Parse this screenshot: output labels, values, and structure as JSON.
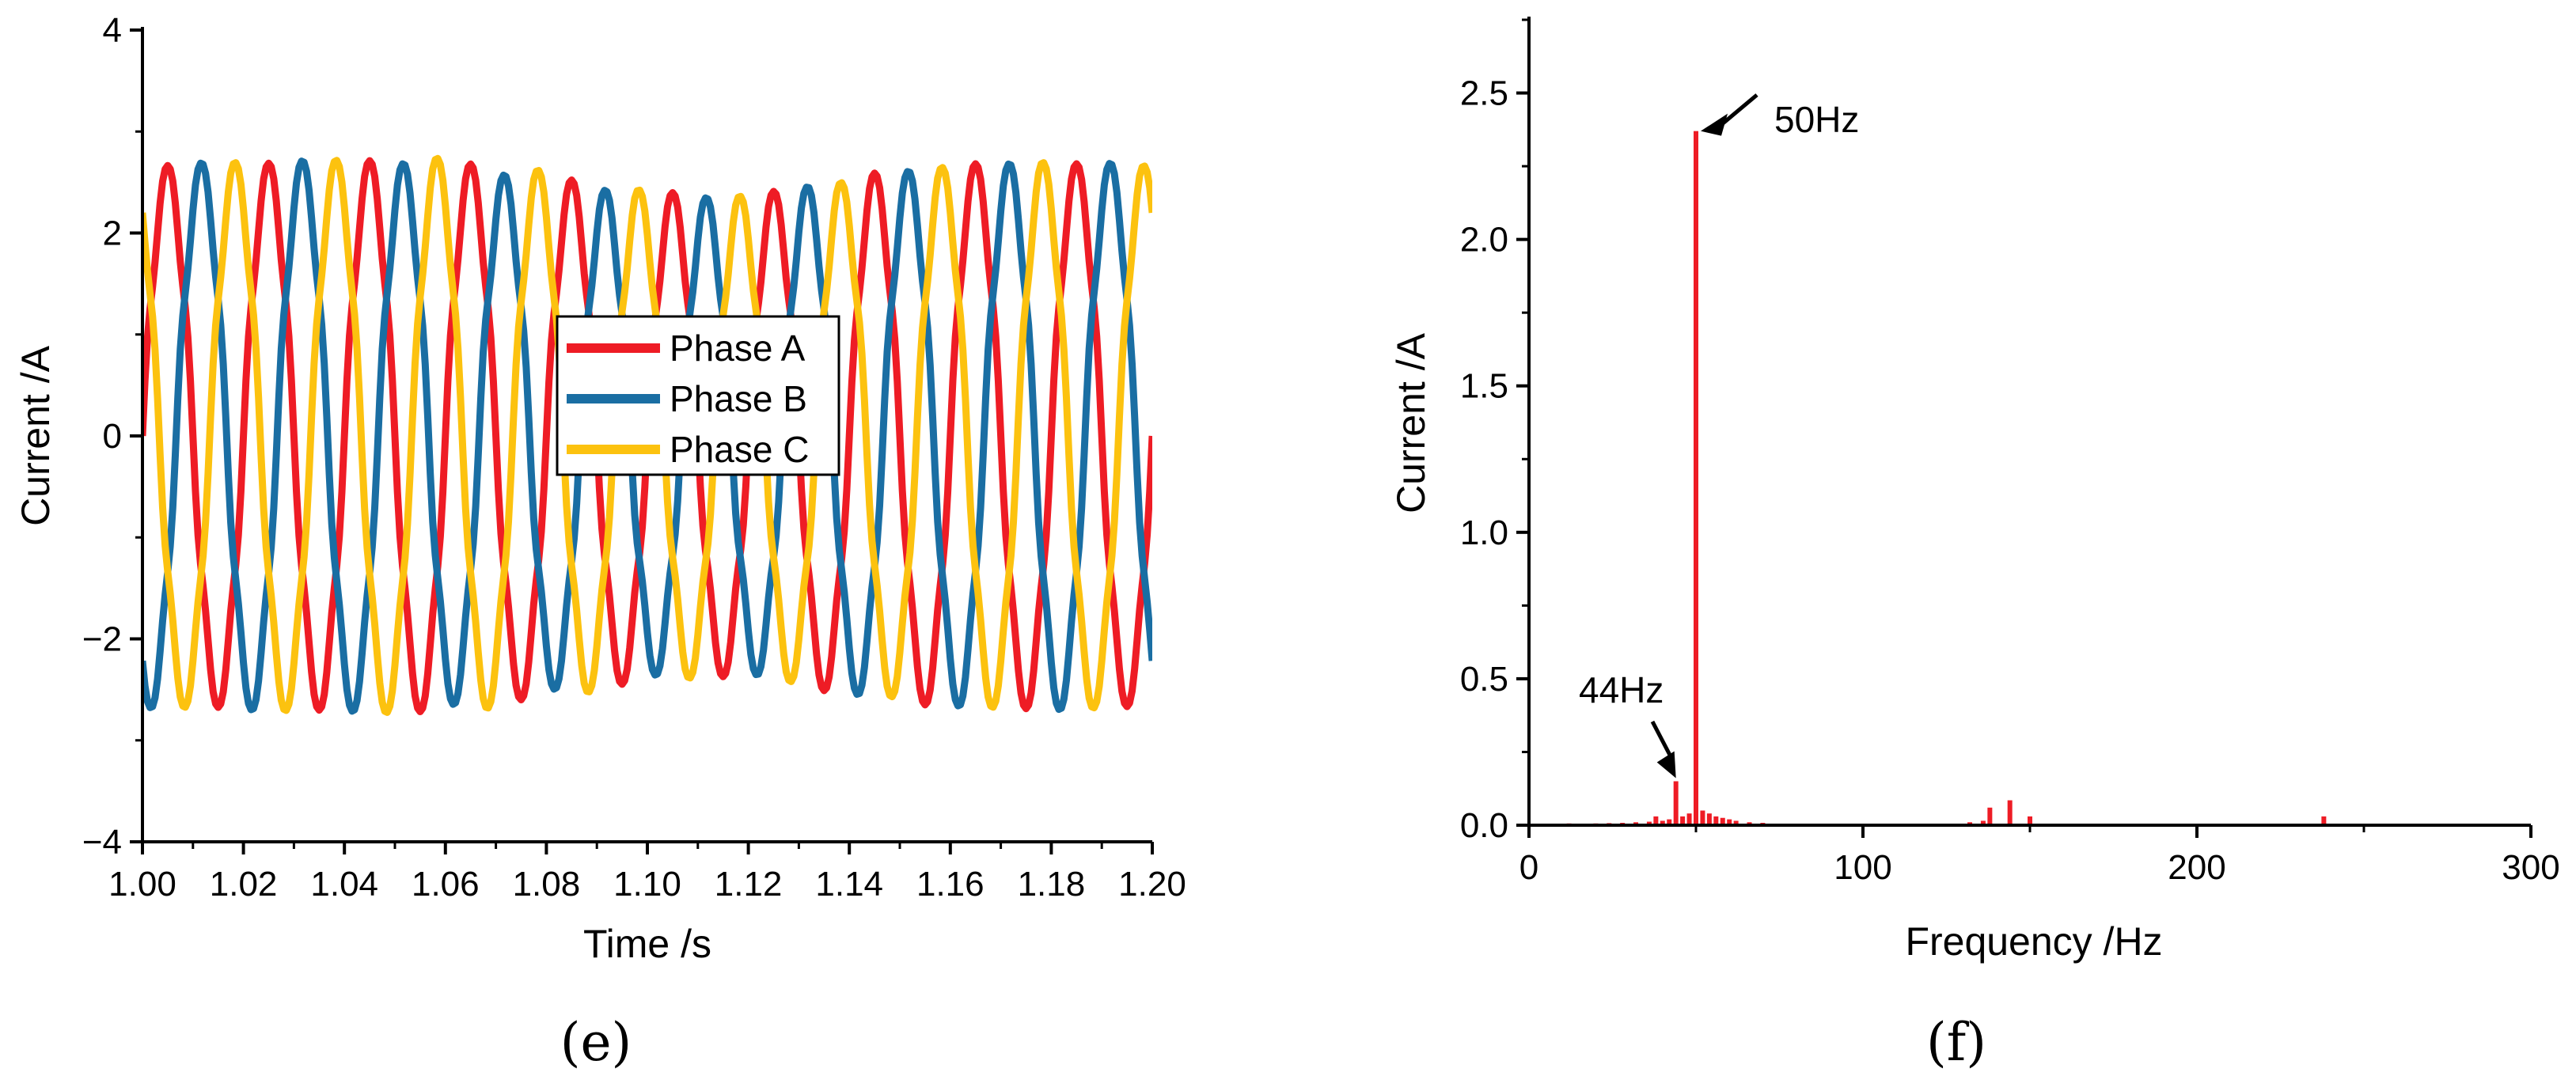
{
  "chart_data": [
    {
      "type": "line",
      "panel_label": "(e)",
      "title": "",
      "xlabel": "Time /s",
      "ylabel": "Current /A",
      "xlim": [
        1.0,
        1.2
      ],
      "ylim": [
        -4,
        4
      ],
      "xticks": [
        "1.00",
        "1.02",
        "1.04",
        "1.06",
        "1.08",
        "1.10",
        "1.12",
        "1.14",
        "1.16",
        "1.18",
        "1.20"
      ],
      "yticks": [
        "4",
        "2",
        "0",
        "−2",
        "−4"
      ],
      "frequency_hz": 50,
      "sample_step_s": 0.0005,
      "legend_position": "center",
      "series": [
        {
          "name": "Phase A",
          "color": "#ee1c25",
          "phase_deg": 0,
          "x": [
            1.0,
            1.02,
            1.04,
            1.06,
            1.08,
            1.1,
            1.12,
            1.14,
            1.16,
            1.18,
            1.2
          ],
          "amplitude": [
            2.6,
            2.62,
            2.65,
            2.66,
            2.5,
            2.35,
            2.3,
            2.5,
            2.62,
            2.63,
            2.6
          ]
        },
        {
          "name": "Phase B",
          "color": "#1a6ea3",
          "phase_deg": -120,
          "x": [
            1.0,
            1.02,
            1.04,
            1.06,
            1.08,
            1.1,
            1.12,
            1.14,
            1.16,
            1.18,
            1.2
          ],
          "amplitude": [
            2.62,
            2.64,
            2.66,
            2.6,
            2.45,
            2.3,
            2.28,
            2.48,
            2.6,
            2.64,
            2.62
          ]
        },
        {
          "name": "Phase C",
          "color": "#fcc20f",
          "phase_deg": 120,
          "x": [
            1.0,
            1.02,
            1.04,
            1.06,
            1.08,
            1.1,
            1.12,
            1.14,
            1.16,
            1.18,
            1.2
          ],
          "amplitude": [
            2.6,
            2.64,
            2.66,
            2.68,
            2.55,
            2.35,
            2.3,
            2.45,
            2.6,
            2.64,
            2.6
          ]
        }
      ]
    },
    {
      "type": "bar",
      "panel_label": "(f)",
      "title": "",
      "xlabel": "Frequency /Hz",
      "ylabel": "Current /A",
      "xlim": [
        0,
        300
      ],
      "ylim": [
        0,
        2.75
      ],
      "xticks": [
        "0",
        "100",
        "200",
        "300"
      ],
      "yticks": [
        "0.0",
        "0.5",
        "1.0",
        "1.5",
        "2.0",
        "2.5"
      ],
      "color": "#ee1c25",
      "frequencies": [
        4,
        8,
        12,
        16,
        20,
        24,
        28,
        32,
        36,
        38,
        40,
        42,
        44,
        46,
        48,
        50,
        52,
        54,
        56,
        58,
        60,
        62,
        66,
        70,
        80,
        90,
        100,
        110,
        120,
        132,
        136,
        138,
        144,
        150,
        160,
        170,
        180,
        190,
        200,
        210,
        220,
        230,
        238,
        245
      ],
      "values": [
        0.005,
        0.005,
        0.006,
        0.005,
        0.006,
        0.007,
        0.008,
        0.01,
        0.012,
        0.03,
        0.015,
        0.02,
        0.15,
        0.03,
        0.04,
        2.37,
        0.05,
        0.04,
        0.03,
        0.025,
        0.02,
        0.015,
        0.01,
        0.008,
        0.005,
        0.005,
        0.005,
        0.004,
        0.004,
        0.01,
        0.015,
        0.06,
        0.085,
        0.03,
        0.005,
        0.004,
        0.004,
        0.004,
        0.004,
        0.004,
        0.004,
        0.004,
        0.03,
        0.004
      ],
      "annotations": [
        {
          "text": "50Hz",
          "x": 50,
          "y": 2.37
        },
        {
          "text": "44Hz",
          "x": 44,
          "y": 0.15
        }
      ]
    }
  ]
}
